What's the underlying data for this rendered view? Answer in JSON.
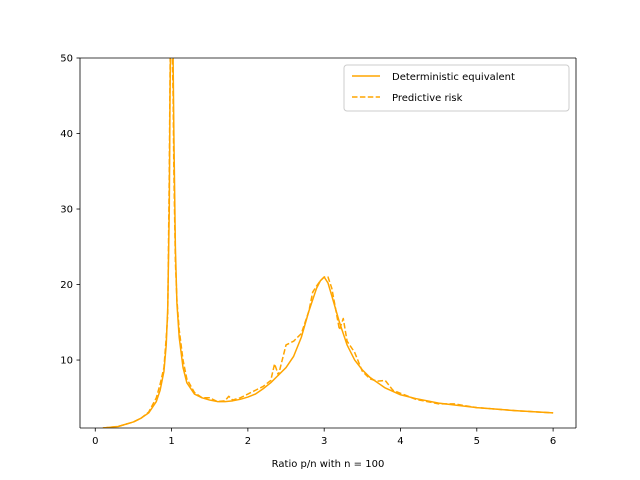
{
  "chart_data": {
    "type": "line",
    "title": "",
    "xlabel": "Ratio p/n with n = 100",
    "ylabel": "",
    "xlim": [
      -0.2,
      6.3
    ],
    "ylim": [
      1,
      50
    ],
    "xticks": [
      0,
      1,
      2,
      3,
      4,
      5,
      6
    ],
    "yticks": [
      10,
      20,
      30,
      40,
      50
    ],
    "grid": false,
    "legend_position": "upper right",
    "series": [
      {
        "name": "Deterministic equivalent",
        "style": "solid",
        "color": "#FFA500",
        "x": [
          0.1,
          0.3,
          0.5,
          0.6,
          0.7,
          0.8,
          0.85,
          0.9,
          0.93,
          0.95,
          0.97,
          0.98,
          0.99,
          1.0,
          1.01,
          1.02,
          1.03,
          1.05,
          1.07,
          1.1,
          1.15,
          1.2,
          1.3,
          1.4,
          1.5,
          1.6,
          1.7,
          1.8,
          1.9,
          2.0,
          2.1,
          2.2,
          2.3,
          2.4,
          2.5,
          2.6,
          2.7,
          2.8,
          2.9,
          2.95,
          3.0,
          3.05,
          3.1,
          3.2,
          3.3,
          3.4,
          3.5,
          3.6,
          3.8,
          4.0,
          4.2,
          4.5,
          5.0,
          5.5,
          6.0
        ],
        "y": [
          1.0,
          1.2,
          1.8,
          2.3,
          3.0,
          4.5,
          6.0,
          8.5,
          12.0,
          17.0,
          30.0,
          45.0,
          55.0,
          60.0,
          55.0,
          50.0,
          40.0,
          25.0,
          17.5,
          13.0,
          9.0,
          7.0,
          5.5,
          5.0,
          4.7,
          4.5,
          4.5,
          4.6,
          4.8,
          5.1,
          5.5,
          6.2,
          7.0,
          8.0,
          9.0,
          10.5,
          13.0,
          16.5,
          19.5,
          20.5,
          21.0,
          20.2,
          18.5,
          15.0,
          12.0,
          10.0,
          8.7,
          7.7,
          6.3,
          5.4,
          4.9,
          4.3,
          3.7,
          3.3,
          3.0
        ]
      },
      {
        "name": "Predictive risk",
        "style": "dashed",
        "color": "#FFA500",
        "x": [
          0.1,
          0.3,
          0.5,
          0.6,
          0.7,
          0.8,
          0.85,
          0.9,
          0.93,
          0.95,
          0.97,
          0.98,
          0.99,
          1.0,
          1.01,
          1.02,
          1.03,
          1.05,
          1.07,
          1.1,
          1.15,
          1.2,
          1.3,
          1.4,
          1.5,
          1.6,
          1.7,
          1.75,
          1.8,
          1.9,
          2.0,
          2.1,
          2.2,
          2.3,
          2.35,
          2.4,
          2.5,
          2.6,
          2.7,
          2.8,
          2.85,
          2.9,
          2.95,
          3.0,
          3.05,
          3.1,
          3.2,
          3.25,
          3.3,
          3.4,
          3.5,
          3.6,
          3.7,
          3.8,
          3.9,
          4.0,
          4.2,
          4.5,
          4.7,
          5.0,
          5.5,
          6.0
        ],
        "y": [
          1.0,
          1.2,
          1.8,
          2.3,
          3.1,
          5.0,
          6.8,
          9.0,
          13.0,
          16.0,
          35.0,
          48.0,
          57.0,
          55.0,
          50.0,
          45.0,
          35.0,
          23.0,
          18.0,
          14.0,
          10.0,
          7.5,
          5.7,
          5.0,
          5.0,
          4.5,
          4.6,
          5.2,
          4.7,
          5.0,
          5.5,
          6.0,
          6.5,
          7.3,
          9.5,
          8.0,
          12.0,
          12.5,
          13.5,
          16.5,
          19.0,
          19.8,
          20.5,
          21.0,
          21.0,
          19.5,
          14.0,
          15.5,
          12.5,
          11.0,
          8.5,
          7.5,
          7.2,
          7.3,
          6.0,
          5.6,
          4.8,
          4.2,
          4.2,
          3.7,
          3.3,
          3.0
        ]
      }
    ]
  }
}
